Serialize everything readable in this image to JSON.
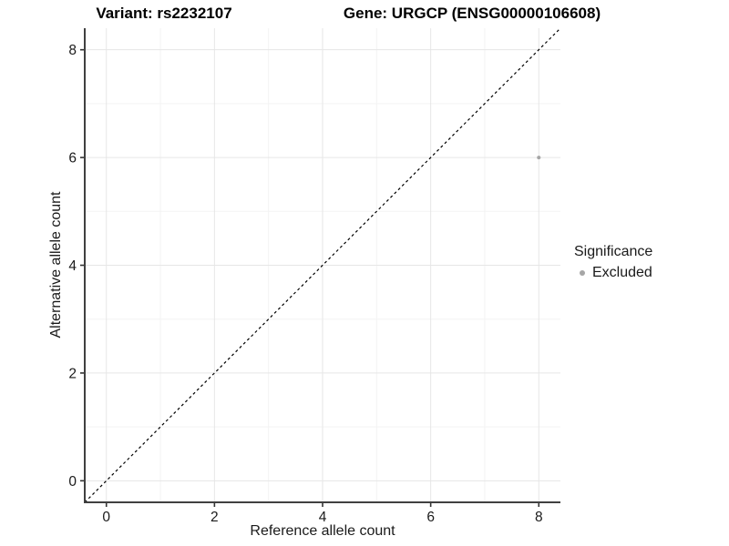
{
  "chart_data": {
    "type": "scatter",
    "title_left": "Variant: rs2232107",
    "title_right": "Gene: URGCP (ENSG00000106608)",
    "xlabel": "Reference allele count",
    "ylabel": "Alternative allele count",
    "xlim": [
      -0.4,
      8.4
    ],
    "ylim": [
      -0.4,
      8.4
    ],
    "x_ticks": [
      0,
      2,
      4,
      6,
      8
    ],
    "y_ticks": [
      0,
      2,
      4,
      6,
      8
    ],
    "x_minor_ticks": [
      1,
      3,
      5,
      7
    ],
    "y_minor_ticks": [
      1,
      3,
      5,
      7
    ],
    "grid": true,
    "reference_line": {
      "kind": "identity y=x",
      "style": "dashed",
      "color": "#000000"
    },
    "series": [
      {
        "name": "Excluded",
        "color": "#a6a6a6",
        "points": [
          {
            "x": 8,
            "y": 6
          }
        ]
      }
    ],
    "legend": {
      "title": "Significance",
      "position": "right",
      "items": [
        {
          "label": "Excluded",
          "color": "#a6a6a6"
        }
      ]
    }
  },
  "colors": {
    "background": "#ffffff",
    "axis_line": "#404040",
    "tick_mark": "#333333",
    "tick_label": "#1a1a1a",
    "grid_major": "#e6e6e6",
    "grid_minor": "#f3f3f3",
    "point": "#a6a6a6",
    "dashed_line": "#000000"
  }
}
